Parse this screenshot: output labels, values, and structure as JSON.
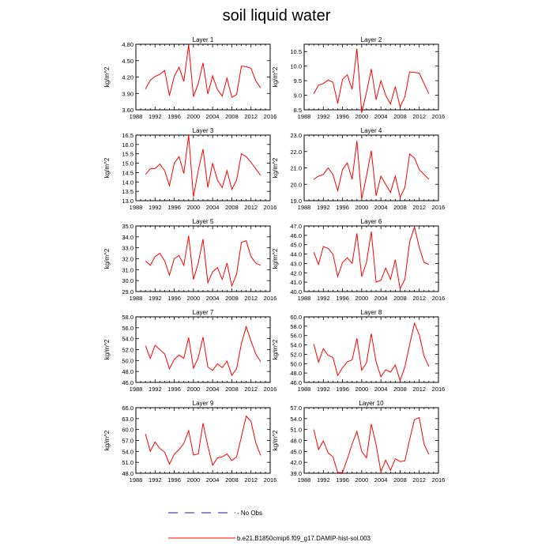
{
  "title": "soil liquid water",
  "xlim": [
    1988,
    2016
  ],
  "xticks": [
    1988,
    1992,
    1996,
    2000,
    2004,
    2008,
    2012,
    2016
  ],
  "x": [
    1990,
    1991,
    1992,
    1993,
    1994,
    1995,
    1996,
    1997,
    1998,
    1999,
    2000,
    2001,
    2002,
    2003,
    2004,
    2005,
    2006,
    2007,
    2008,
    2009,
    2010,
    2011,
    2012,
    2013,
    2014
  ],
  "ylabel": "kg/m^2",
  "legend": {
    "obs_label": "No Obs",
    "model_label": "b.e21.B1850cmip6.f09_g17.DAMIP-hist-sol.003",
    "obs_color": "#1a1aa6",
    "model_color": "#ff0000"
  },
  "chart_data": [
    {
      "type": "line",
      "title": "Layer 1",
      "ylabel": "kg/m^2",
      "ylim": [
        3.6,
        4.8
      ],
      "yticks": [
        "3.60",
        "3.90",
        "4.20",
        "4.50",
        "4.80"
      ],
      "series": [
        {
          "name": "b.e21.B1850cmip6.f09_g17.DAMIP-hist-sol.003",
          "values": [
            3.98,
            4.14,
            4.21,
            4.25,
            4.32,
            3.86,
            4.21,
            4.38,
            4.12,
            4.79,
            3.84,
            4.08,
            4.46,
            3.89,
            4.22,
            3.97,
            3.85,
            4.18,
            3.83,
            3.88,
            4.4,
            4.39,
            4.36,
            4.13,
            4.0
          ]
        }
      ]
    },
    {
      "type": "line",
      "title": "Layer 2",
      "ylabel": "kg/m^2",
      "ylim": [
        8.5,
        10.75
      ],
      "yticks": [
        "8.5",
        "9.0",
        "9.5",
        "10.0",
        "10.5"
      ],
      "series": [
        {
          "name": "b.e21.B1850cmip6.f09_g17.DAMIP-hist-sol.003",
          "values": [
            9.05,
            9.35,
            9.4,
            9.52,
            9.45,
            8.72,
            9.55,
            9.7,
            9.2,
            10.6,
            8.4,
            9.1,
            9.9,
            8.85,
            9.5,
            9.0,
            8.7,
            9.3,
            8.6,
            8.95,
            9.8,
            9.78,
            9.76,
            9.4,
            9.05
          ]
        }
      ]
    },
    {
      "type": "line",
      "title": "Layer 3",
      "ylabel": "kg/m^2",
      "ylim": [
        13.0,
        16.5
      ],
      "yticks": [
        "13.0",
        "13.5",
        "14.0",
        "14.5",
        "15.0",
        "15.5",
        "16.0",
        "16.5"
      ],
      "series": [
        {
          "name": "b.e21.B1850cmip6.f09_g17.DAMIP-hist-sol.003",
          "values": [
            14.4,
            14.7,
            14.72,
            14.95,
            14.6,
            13.8,
            15.0,
            15.35,
            14.45,
            16.5,
            13.2,
            14.6,
            15.75,
            13.7,
            15.0,
            14.1,
            13.7,
            14.6,
            13.6,
            14.1,
            15.5,
            15.35,
            15.05,
            14.7,
            14.35
          ]
        }
      ]
    },
    {
      "type": "line",
      "title": "Layer 4",
      "ylabel": "kg/m^2",
      "ylim": [
        19.0,
        23.0
      ],
      "yticks": [
        "19.0",
        "20.0",
        "21.0",
        "22.0",
        "23.0"
      ],
      "series": [
        {
          "name": "b.e21.B1850cmip6.f09_g17.DAMIP-hist-sol.003",
          "values": [
            20.3,
            20.5,
            20.6,
            21.0,
            20.6,
            19.6,
            20.9,
            21.3,
            20.3,
            22.65,
            19.1,
            20.5,
            22.05,
            19.3,
            20.5,
            20.0,
            19.5,
            20.5,
            19.2,
            19.8,
            21.85,
            21.6,
            20.9,
            20.6,
            20.3
          ]
        }
      ]
    },
    {
      "type": "line",
      "title": "Layer 5",
      "ylabel": "kg/m^2",
      "ylim": [
        29.0,
        35.0
      ],
      "yticks": [
        "29.0",
        "30.0",
        "31.0",
        "32.0",
        "33.0",
        "34.0",
        "35.0"
      ],
      "series": [
        {
          "name": "b.e21.B1850cmip6.f09_g17.DAMIP-hist-sol.003",
          "values": [
            31.8,
            31.4,
            32.2,
            32.5,
            31.8,
            30.5,
            32.0,
            32.3,
            31.4,
            34.1,
            30.1,
            31.6,
            33.8,
            29.8,
            30.8,
            31.2,
            30.1,
            31.6,
            29.5,
            30.6,
            33.5,
            33.65,
            32.2,
            31.6,
            31.4
          ]
        }
      ]
    },
    {
      "type": "line",
      "title": "Layer 6",
      "ylabel": "kg/m^2",
      "ylim": [
        40.0,
        47.0
      ],
      "yticks": [
        "40.0",
        "41.0",
        "42.0",
        "43.0",
        "44.0",
        "45.0",
        "46.0",
        "47.0"
      ],
      "series": [
        {
          "name": "b.e21.B1850cmip6.f09_g17.DAMIP-hist-sol.003",
          "values": [
            44.2,
            42.9,
            44.8,
            44.6,
            44.0,
            41.6,
            43.1,
            43.6,
            43.0,
            46.2,
            41.6,
            43.1,
            46.4,
            41.0,
            41.2,
            42.5,
            41.3,
            43.4,
            40.3,
            41.3,
            45.3,
            46.9,
            44.7,
            43.1,
            42.9
          ]
        }
      ]
    },
    {
      "type": "line",
      "title": "Layer 7",
      "ylabel": "kg/m^2",
      "ylim": [
        46.0,
        58.0
      ],
      "yticks": [
        "46.0",
        "48.0",
        "50.0",
        "52.0",
        "54.0",
        "56.0",
        "58.0"
      ],
      "series": [
        {
          "name": "b.e21.B1850cmip6.f09_g17.DAMIP-hist-sol.003",
          "values": [
            52.7,
            50.4,
            52.8,
            52.0,
            51.2,
            48.5,
            50.2,
            51.0,
            50.4,
            54.2,
            48.6,
            50.5,
            54.3,
            48.8,
            48.2,
            49.4,
            48.7,
            49.9,
            47.3,
            48.5,
            53.1,
            56.2,
            53.6,
            51.2,
            49.8
          ]
        }
      ]
    },
    {
      "type": "line",
      "title": "Layer 8",
      "ylabel": "kg/m^2",
      "ylim": [
        46.0,
        60.0
      ],
      "yticks": [
        "46.0",
        "48.0",
        "50.0",
        "52.0",
        "54.0",
        "56.0",
        "58.0",
        "60.0"
      ],
      "series": [
        {
          "name": "b.e21.B1850cmip6.f09_g17.DAMIP-hist-sol.003",
          "values": [
            54.2,
            50.3,
            53.2,
            51.8,
            51.3,
            47.5,
            49.1,
            50.4,
            50.8,
            55.4,
            48.6,
            50.2,
            56.4,
            50.4,
            47.2,
            48.7,
            48.2,
            49.7,
            46.4,
            49.3,
            54.1,
            58.6,
            56.2,
            51.6,
            49.4
          ]
        }
      ]
    },
    {
      "type": "line",
      "title": "Layer 9",
      "ylabel": "kg/m^2",
      "ylim": [
        48.0,
        66.0
      ],
      "yticks": [
        "48.0",
        "51.0",
        "54.0",
        "57.0",
        "60.0",
        "63.0",
        "66.0"
      ],
      "series": [
        {
          "name": "b.e21.B1850cmip6.f09_g17.DAMIP-hist-sol.003",
          "values": [
            58.8,
            54.0,
            56.6,
            54.8,
            53.8,
            50.5,
            53.2,
            54.5,
            56.2,
            59.7,
            53.0,
            53.3,
            61.7,
            55.5,
            50.2,
            52.2,
            52.5,
            53.3,
            51.5,
            52.5,
            58.0,
            63.7,
            62.2,
            56.4,
            52.9
          ]
        }
      ]
    },
    {
      "type": "line",
      "title": "Layer 10",
      "ylabel": "kg/m^2",
      "ylim": [
        39.0,
        57.0
      ],
      "yticks": [
        "39.0",
        "42.0",
        "45.0",
        "48.0",
        "51.0",
        "54.0",
        "57.0"
      ],
      "series": [
        {
          "name": "b.e21.B1850cmip6.f09_g17.DAMIP-hist-sol.003",
          "values": [
            51.0,
            45.5,
            47.9,
            44.6,
            43.5,
            39.2,
            39.2,
            42.9,
            47.0,
            50.5,
            45.0,
            43.2,
            52.5,
            46.8,
            39.4,
            42.6,
            39.8,
            43.0,
            42.2,
            42.4,
            48.3,
            53.7,
            54.3,
            47.0,
            44.2
          ]
        }
      ]
    }
  ]
}
